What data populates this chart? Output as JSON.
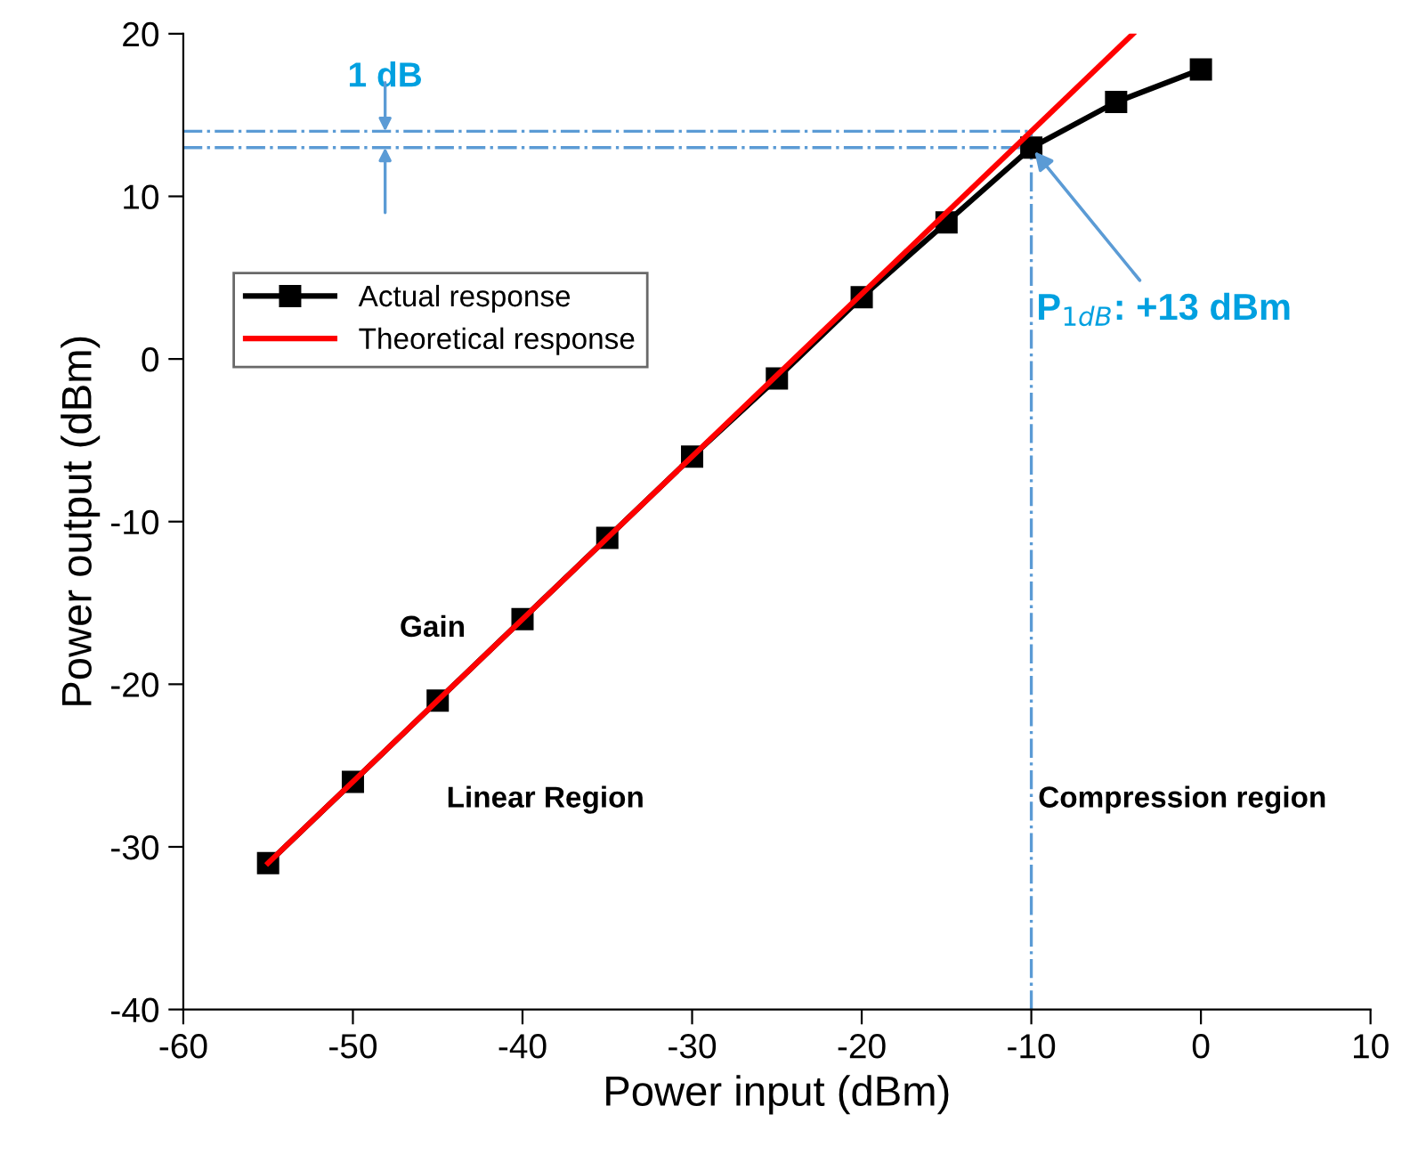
{
  "chart_data": {
    "type": "line",
    "xlabel": "Power input (dBm)",
    "ylabel": "Power output (dBm)",
    "series": [
      {
        "name": "Actual response",
        "color": "#000000",
        "marker": "square",
        "x": [
          -55,
          -50,
          -45,
          -40,
          -35,
          -30,
          -25,
          -20,
          -15,
          -10,
          -5,
          0
        ],
        "values": [
          -31,
          -26,
          -21,
          -16,
          -11,
          -6,
          -1.2,
          3.8,
          8.4,
          13,
          15.8,
          17.8
        ]
      },
      {
        "name": "Theoretical response",
        "color": "#ff0000",
        "marker": "none",
        "x": [
          -55,
          -4
        ],
        "values": [
          -31,
          20
        ]
      }
    ],
    "xlim": [
      -60,
      10
    ],
    "xticks": [
      -60,
      -50,
      -40,
      -30,
      -20,
      -10,
      0,
      10
    ],
    "ylim": [
      -40,
      20
    ],
    "yticks": [
      -40,
      -30,
      -20,
      -10,
      0,
      10,
      20
    ],
    "ref_lines": [
      {
        "axis": "y",
        "value": 14,
        "color": "#5b9bd5",
        "line_style": "dashdot"
      },
      {
        "axis": "y",
        "value": 13,
        "color": "#5b9bd5",
        "line_style": "dashdot"
      },
      {
        "axis": "x",
        "value": -10,
        "color": "#5b9bd5",
        "line_style": "dashdot"
      }
    ],
    "annotations": [
      "1 dB",
      {
        "text": "P$_{1dB}$: +13 dBm",
        "x": -10,
        "y": 13
      },
      "Gain",
      "Linear Region",
      "Compression region"
    ],
    "legend": "top left",
    "grid": false
  }
}
